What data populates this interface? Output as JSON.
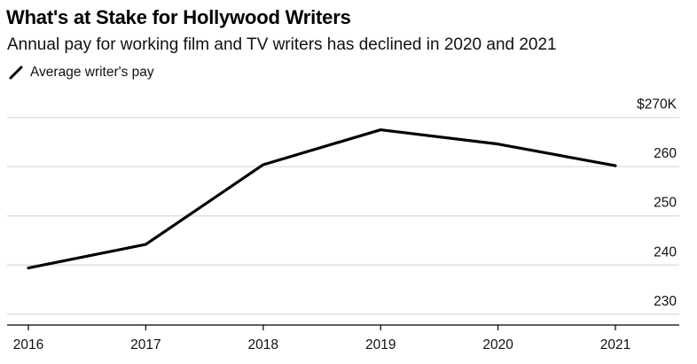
{
  "header": {
    "title": "What's at Stake for Hollywood Writers",
    "subtitle": "Annual pay for working film and TV writers has declined in 2020 and 2021"
  },
  "legend": {
    "items": [
      {
        "label": "Average writer's pay",
        "color": "#000000"
      }
    ]
  },
  "colors": {
    "line": "#000000",
    "grid": "#d9d9d9",
    "axis": "#000000"
  },
  "chart_data": {
    "type": "line",
    "title": "What's at Stake for Hollywood Writers",
    "subtitle": "Annual pay for working film and TV writers has declined in 2020 and 2021",
    "x": [
      "2016",
      "2017",
      "2018",
      "2019",
      "2020",
      "2021"
    ],
    "series": [
      {
        "name": "Average writer's pay",
        "values": [
          239.4,
          244.2,
          260.4,
          267.5,
          264.6,
          260.2
        ]
      }
    ],
    "ylim": [
      227.8,
      271.2
    ],
    "y_ticks": [
      {
        "value": 270,
        "label": "$270K"
      },
      {
        "value": 260,
        "label": "260"
      },
      {
        "value": 250,
        "label": "250"
      },
      {
        "value": 240,
        "label": "240"
      },
      {
        "value": 230,
        "label": "230"
      }
    ],
    "y_axis_side": "right",
    "grid": true,
    "legend_position": "top-left"
  }
}
